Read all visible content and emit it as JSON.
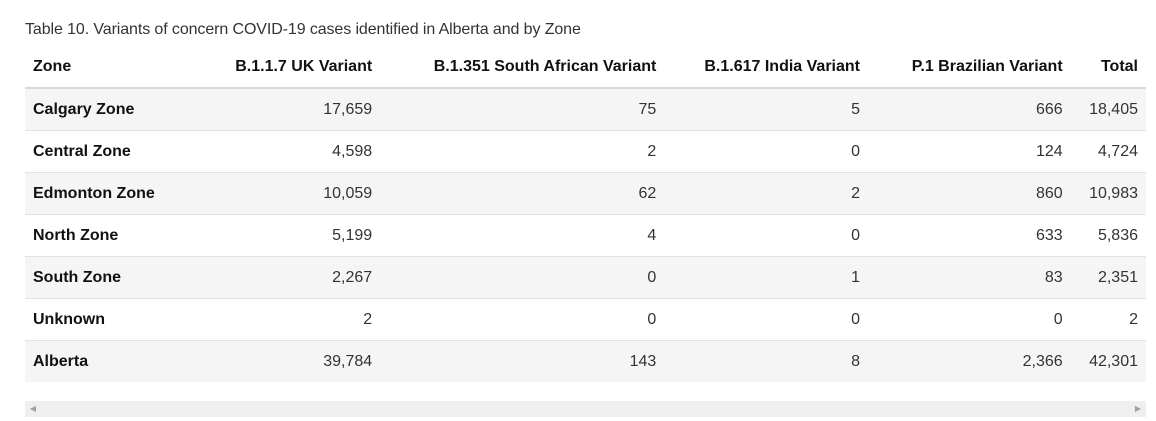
{
  "table": {
    "caption": "Table 10. Variants of concern COVID-19 cases identified in Alberta and by Zone",
    "headers": {
      "zone": "Zone",
      "uk": "B.1.1.7 UK Variant",
      "sa": "B.1.351 South African Variant",
      "india": "B.1.617 India Variant",
      "brazil": "P.1 Brazilian Variant",
      "total": "Total"
    },
    "rows": [
      {
        "zone": "Calgary Zone",
        "uk": "17,659",
        "sa": "75",
        "india": "5",
        "brazil": "666",
        "total": "18,405"
      },
      {
        "zone": "Central Zone",
        "uk": "4,598",
        "sa": "2",
        "india": "0",
        "brazil": "124",
        "total": "4,724"
      },
      {
        "zone": "Edmonton Zone",
        "uk": "10,059",
        "sa": "62",
        "india": "2",
        "brazil": "860",
        "total": "10,983"
      },
      {
        "zone": "North Zone",
        "uk": "5,199",
        "sa": "4",
        "india": "0",
        "brazil": "633",
        "total": "5,836"
      },
      {
        "zone": "South Zone",
        "uk": "2,267",
        "sa": "0",
        "india": "1",
        "brazil": "83",
        "total": "2,351"
      },
      {
        "zone": "Unknown",
        "uk": "2",
        "sa": "0",
        "india": "0",
        "brazil": "0",
        "total": "2"
      },
      {
        "zone": "Alberta",
        "uk": "39,784",
        "sa": "143",
        "india": "8",
        "brazil": "2,366",
        "total": "42,301"
      }
    ]
  },
  "scrollbar": {
    "left_icon": "arrow-left-icon",
    "right_icon": "arrow-right-icon"
  }
}
